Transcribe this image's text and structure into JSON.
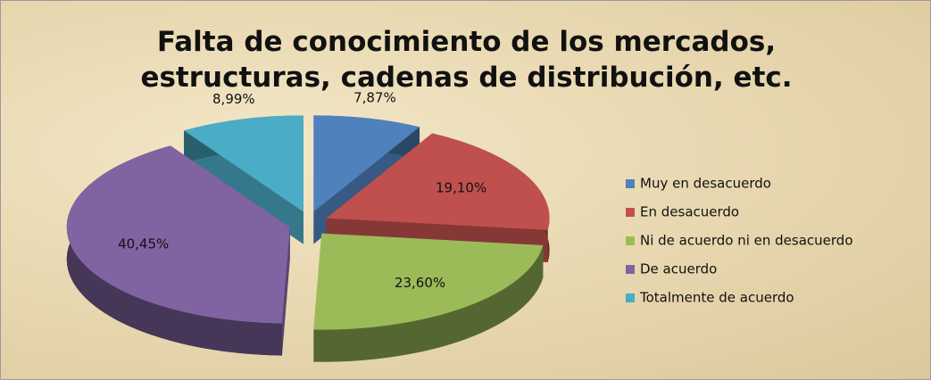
{
  "chart_data": {
    "type": "pie3d",
    "title": "Falta de conocimiento de los mercados,\nestructuras, cadenas de distribución, etc.",
    "categories": [
      "Muy en desacuerdo",
      "En desacuerdo",
      "Ni de acuerdo ni en desacuerdo",
      "De acuerdo",
      "Totalmente de acuerdo"
    ],
    "values": [
      7.87,
      19.1,
      23.6,
      40.45,
      8.99
    ],
    "value_labels": [
      "7,87%",
      "19,10%",
      "23,60%",
      "40,45%",
      "8,99%"
    ],
    "colors": [
      "#4f81bd",
      "#c0504d",
      "#9bbb59",
      "#8064a2",
      "#4bacc6"
    ],
    "legend": "right"
  }
}
